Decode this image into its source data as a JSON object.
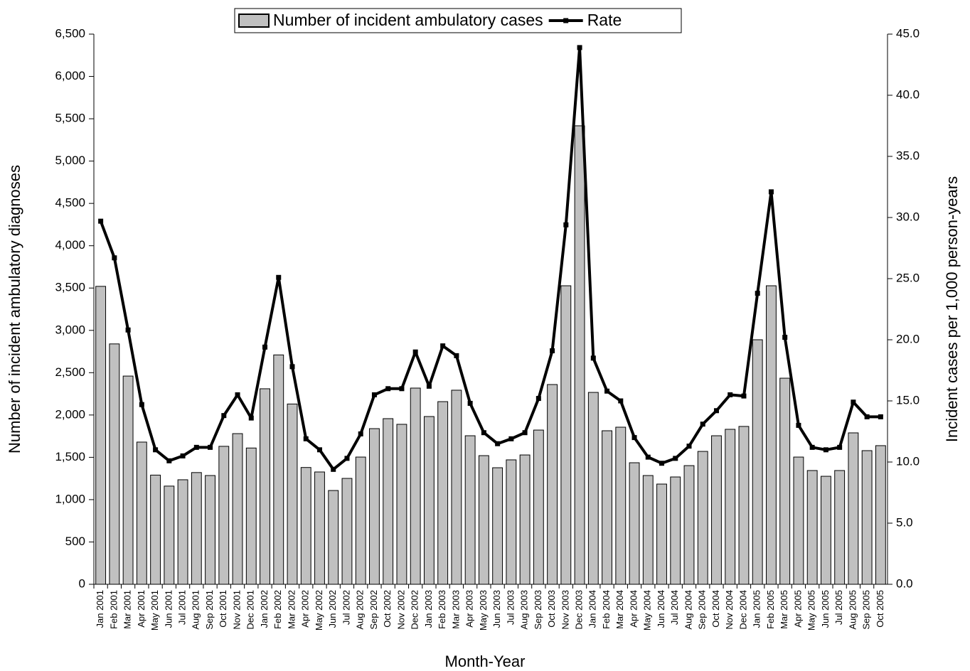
{
  "chart_data": {
    "type": "bar-line",
    "x_label": "Month-Year",
    "y_label": "Number of incident ambulatory diagnoses",
    "y2_label": "Incident cases per 1,000 person-years",
    "legend": "top",
    "categories": [
      "Jan 2001",
      "Feb 2001",
      "Mar 2001",
      "Apr 2001",
      "May 2001",
      "Jun 2001",
      "Jul 2001",
      "Aug 2001",
      "Sep 2001",
      "Oct 2001",
      "Nov 2001",
      "Dec 2001",
      "Jan 2002",
      "Feb 2002",
      "Mar 2002",
      "Apr 2002",
      "May 2002",
      "Jun 2002",
      "Jul 2002",
      "Aug 2002",
      "Sep 2002",
      "Oct 2002",
      "Nov 2002",
      "Dec 2002",
      "Jan 2003",
      "Feb 2003",
      "Mar 2003",
      "Apr 2003",
      "May 2003",
      "Jun 2003",
      "Jul 2003",
      "Aug 2003",
      "Sep 2003",
      "Oct 2003",
      "Nov 2003",
      "Dec 2003",
      "Jan 2004",
      "Feb 2004",
      "Mar 2004",
      "Apr 2004",
      "May 2004",
      "Jun 2004",
      "Jul 2004",
      "Aug 2004",
      "Sep 2004",
      "Oct 2004",
      "Nov 2004",
      "Dec 2004",
      "Jan 2005",
      "Feb 2005",
      "Mar 2005",
      "Apr 2005",
      "May 2005",
      "Jun 2005",
      "Jul 2005",
      "Aug 2005",
      "Sep 2005",
      "Oct 2005"
    ],
    "series": [
      {
        "name": "Number of incident ambulatory cases",
        "type": "bar",
        "color": "#c0c0c0",
        "values": [
          3520,
          2840,
          2460,
          1680,
          1290,
          1160,
          1235,
          1320,
          1285,
          1630,
          1780,
          1610,
          2310,
          2710,
          2130,
          1380,
          1327,
          1108,
          1251,
          1503,
          1839,
          1957,
          1890,
          2318,
          1982,
          2158,
          2293,
          1755,
          1520,
          1377,
          1470,
          1528,
          1822,
          2360,
          3527,
          5417,
          2267,
          1814,
          1856,
          1436,
          1285,
          1184,
          1268,
          1402,
          1570,
          1755,
          1831,
          1865,
          2889,
          3527,
          2435,
          1503,
          1344,
          1276,
          1344,
          1789,
          1579,
          1638
        ]
      },
      {
        "name": "Rate",
        "type": "line",
        "axis": "y2",
        "color": "#000000",
        "values": [
          29.7,
          26.7,
          20.8,
          14.7,
          11.0,
          10.1,
          10.5,
          11.2,
          11.2,
          13.8,
          15.5,
          13.6,
          19.4,
          25.1,
          17.8,
          11.9,
          11.0,
          9.4,
          10.3,
          12.3,
          15.5,
          16.0,
          16.0,
          19.0,
          16.2,
          19.5,
          18.7,
          14.8,
          12.4,
          11.5,
          11.9,
          12.4,
          15.2,
          19.1,
          29.4,
          43.9,
          18.5,
          15.8,
          15.0,
          12.0,
          10.4,
          9.9,
          10.3,
          11.3,
          13.1,
          14.2,
          15.5,
          15.4,
          23.8,
          32.1,
          20.2,
          13.0,
          11.2,
          11.0,
          11.2,
          14.9,
          13.7,
          13.7
        ]
      }
    ],
    "ylim": [
      0,
      6500
    ],
    "yticks": [
      0,
      500,
      {
        "value": 1000,
        "label": "1,000"
      },
      {
        "value": 1500,
        "label": "1,500"
      },
      {
        "value": 2000,
        "label": "2,000"
      },
      {
        "value": 2500,
        "label": "2,500"
      },
      {
        "value": 3000,
        "label": "3,000"
      },
      {
        "value": 3500,
        "label": "3,500"
      },
      {
        "value": 4000,
        "label": "4,000"
      },
      {
        "value": 4500,
        "label": "4,500"
      },
      {
        "value": 5000,
        "label": "5,000"
      },
      {
        "value": 5500,
        "label": "5,500"
      },
      {
        "value": 6000,
        "label": "6,000"
      },
      {
        "value": 6500,
        "label": "6,500"
      }
    ],
    "y2lim": [
      0,
      45
    ],
    "y2ticks": [
      {
        "value": 0,
        "label": "0.0"
      },
      {
        "value": 5,
        "label": "5.0"
      },
      {
        "value": 10,
        "label": "10.0"
      },
      {
        "value": 15,
        "label": "15.0"
      },
      {
        "value": 20,
        "label": "20.0"
      },
      {
        "value": 25,
        "label": "25.0"
      },
      {
        "value": 30,
        "label": "30.0"
      },
      {
        "value": 35,
        "label": "35.0"
      },
      {
        "value": 40,
        "label": "40.0"
      },
      {
        "value": 45,
        "label": "45.0"
      }
    ]
  }
}
